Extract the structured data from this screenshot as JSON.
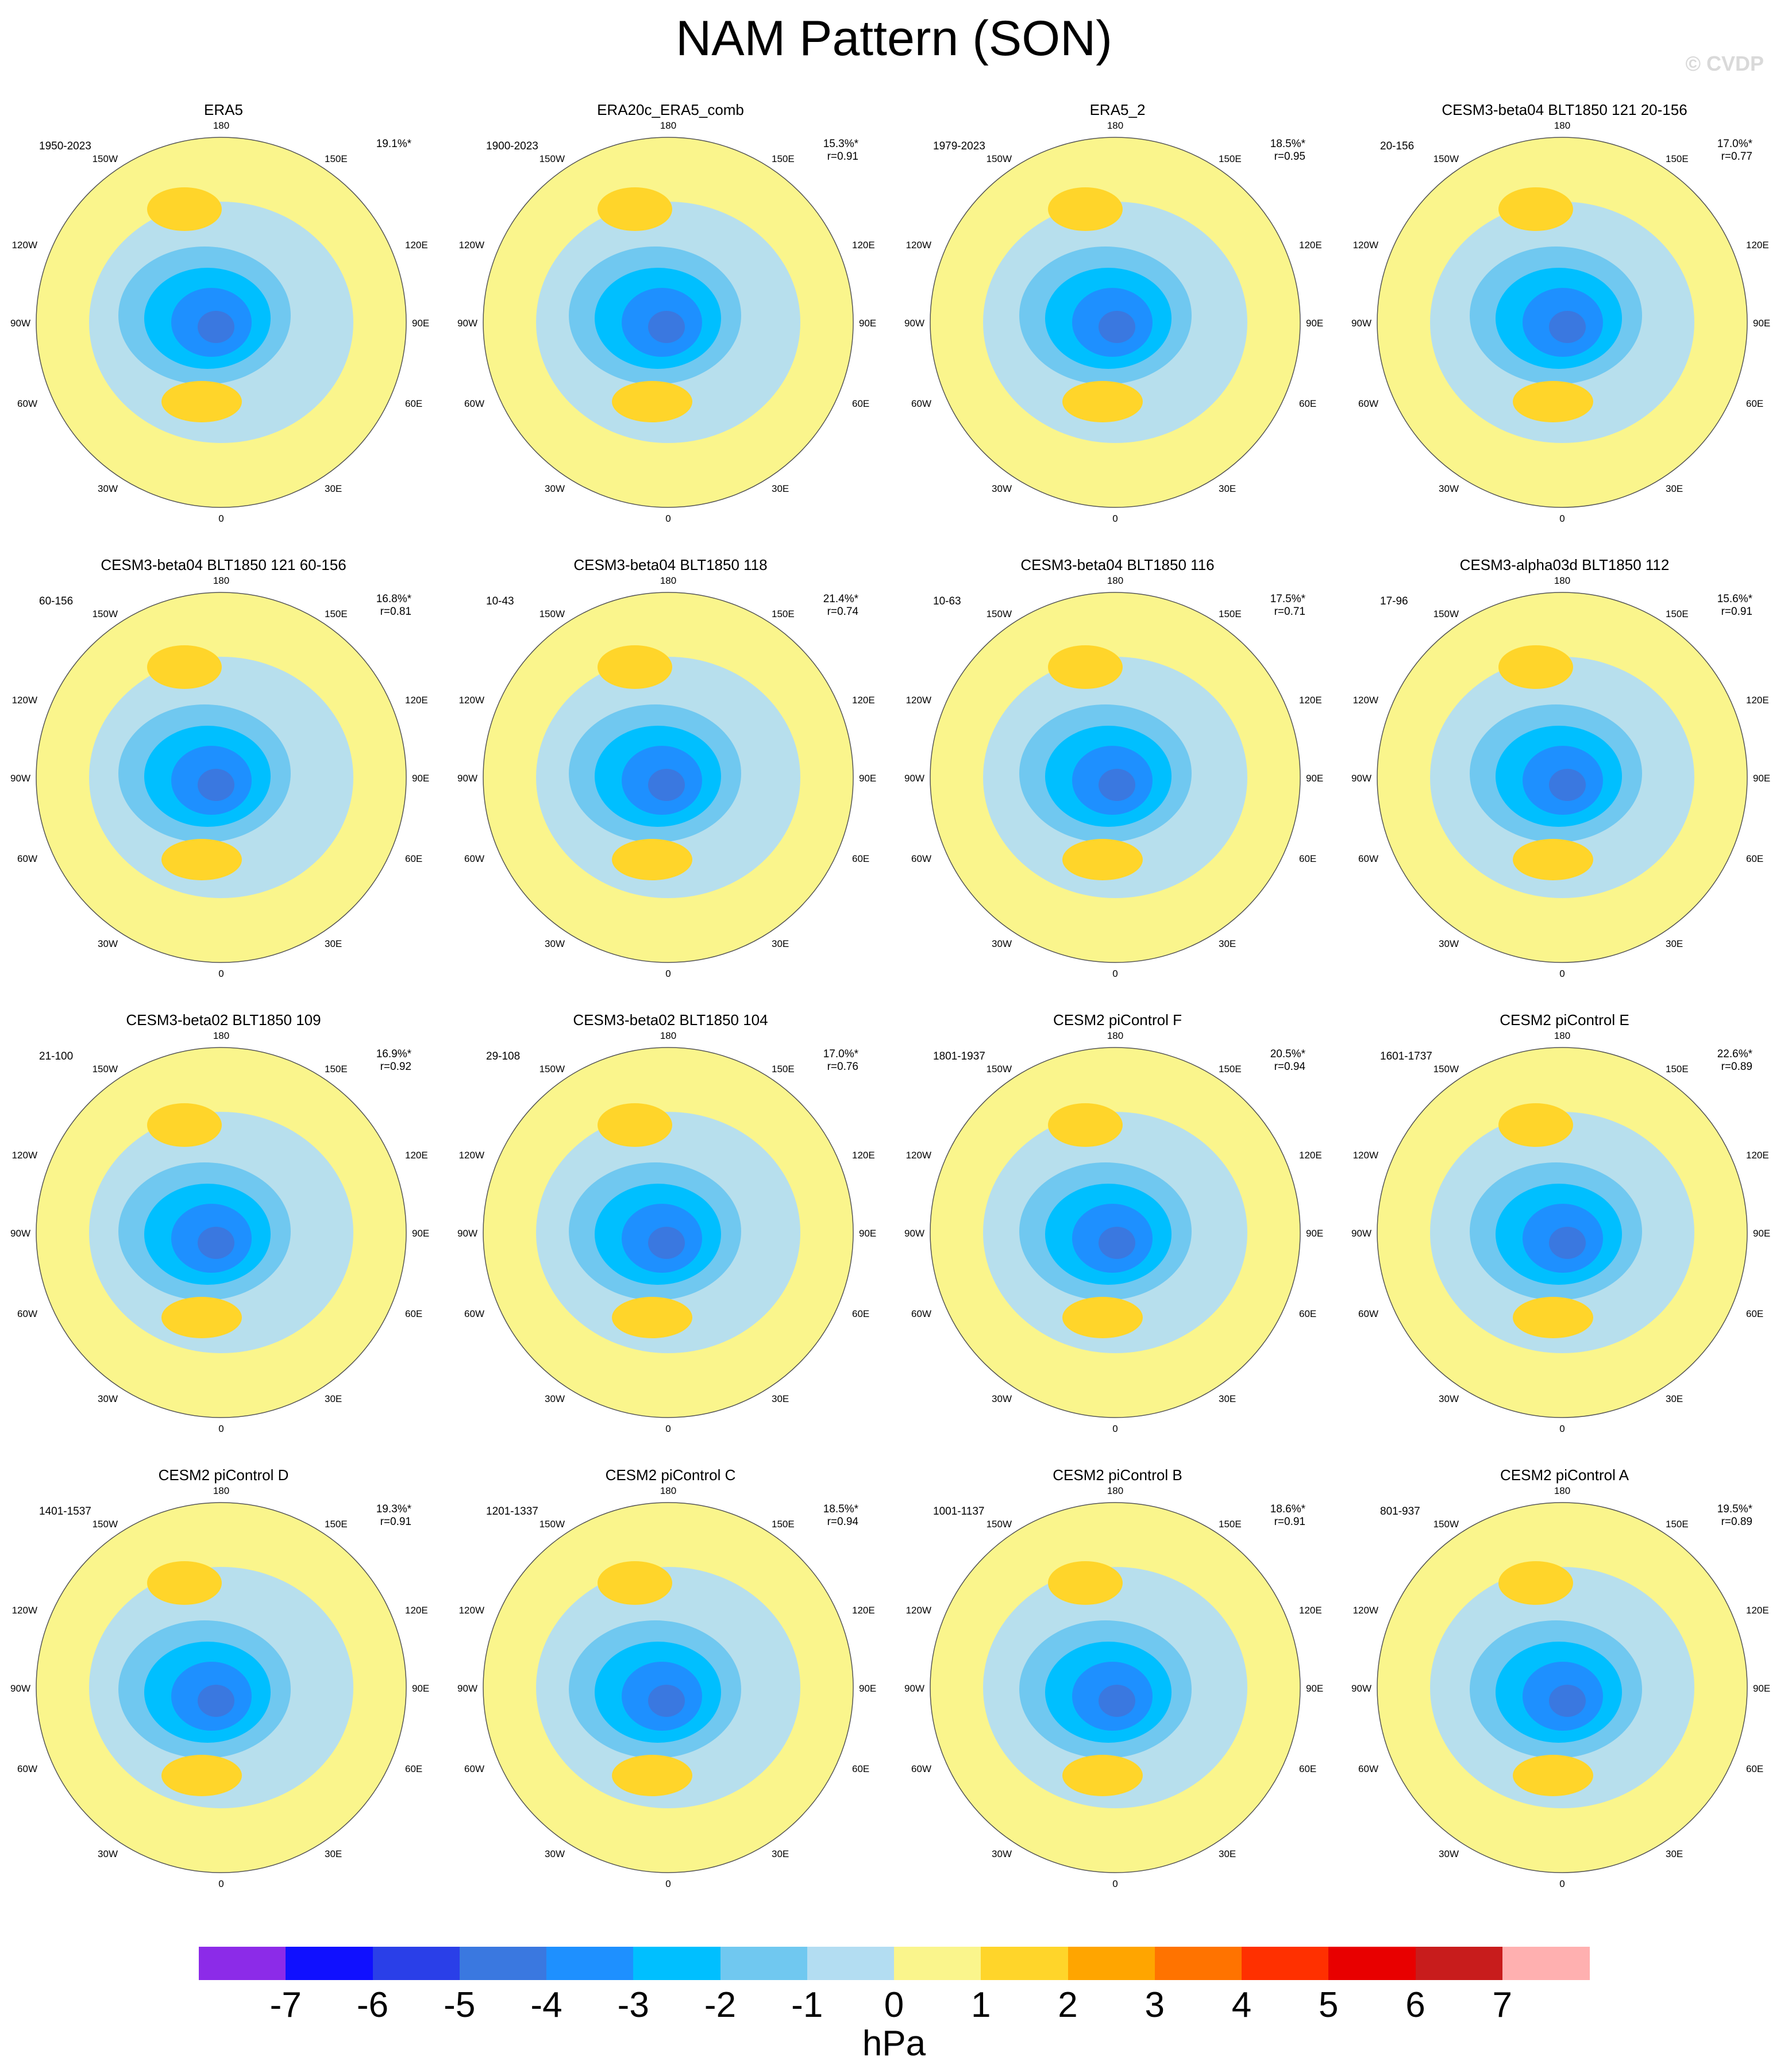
{
  "title": "NAM Pattern (SON)",
  "watermark": "© CVDP",
  "units": "hPa",
  "colorbar": {
    "ticks": [
      "-7",
      "-6",
      "-5",
      "-4",
      "-3",
      "-2",
      "-1",
      "0",
      "1",
      "2",
      "3",
      "4",
      "5",
      "6",
      "7"
    ],
    "colors": [
      "#8C2BE8",
      "#1010FF",
      "#2A3FE8",
      "#3A78E0",
      "#1E90FF",
      "#00BFFF",
      "#70C8F0",
      "#B3DDF2",
      "#FAF58C",
      "#FFD52A",
      "#FFA500",
      "#FF7300",
      "#FF3000",
      "#E80000",
      "#C81C1C",
      "#FFB0B0"
    ]
  },
  "map_labels": {
    "top": "180",
    "bottom": "0",
    "upper_left": "150W",
    "upper_right": "150E",
    "mid_upper_left": "120W",
    "mid_upper_right": "120E",
    "left": "90W",
    "right": "90E",
    "mid_lower_left": "60W",
    "mid_lower_right": "60E",
    "lower_left": "30W",
    "lower_right": "30E"
  },
  "panels": [
    {
      "name": "ERA5",
      "years": "1950-2023",
      "pct": "19.1%*",
      "r": ""
    },
    {
      "name": "ERA20c_ERA5_comb",
      "years": "1900-2023",
      "pct": "15.3%*",
      "r": "r=0.91"
    },
    {
      "name": "ERA5_2",
      "years": "1979-2023",
      "pct": "18.5%*",
      "r": "r=0.95"
    },
    {
      "name": "CESM3-beta04 BLT1850 121 20-156",
      "years": "20-156",
      "pct": "17.0%*",
      "r": "r=0.77"
    },
    {
      "name": "CESM3-beta04 BLT1850 121 60-156",
      "years": "60-156",
      "pct": "16.8%*",
      "r": "r=0.81"
    },
    {
      "name": "CESM3-beta04 BLT1850 118",
      "years": "10-43",
      "pct": "21.4%*",
      "r": "r=0.74"
    },
    {
      "name": "CESM3-beta04 BLT1850 116",
      "years": "10-63",
      "pct": "17.5%*",
      "r": "r=0.71"
    },
    {
      "name": "CESM3-alpha03d BLT1850 112",
      "years": "17-96",
      "pct": "15.6%*",
      "r": "r=0.91"
    },
    {
      "name": "CESM3-beta02 BLT1850 109",
      "years": "21-100",
      "pct": "16.9%*",
      "r": "r=0.92"
    },
    {
      "name": "CESM3-beta02 BLT1850 104",
      "years": "29-108",
      "pct": "17.0%*",
      "r": "r=0.76"
    },
    {
      "name": "CESM2 piControl F",
      "years": "1801-1937",
      "pct": "20.5%*",
      "r": "r=0.94"
    },
    {
      "name": "CESM2 piControl E",
      "years": "1601-1737",
      "pct": "22.6%*",
      "r": "r=0.89"
    },
    {
      "name": "CESM2 piControl D",
      "years": "1401-1537",
      "pct": "19.3%*",
      "r": "r=0.91"
    },
    {
      "name": "CESM2 piControl C",
      "years": "1201-1337",
      "pct": "18.5%*",
      "r": "r=0.94"
    },
    {
      "name": "CESM2 piControl B",
      "years": "1001-1137",
      "pct": "18.6%*",
      "r": "r=0.91"
    },
    {
      "name": "CESM2 piControl A",
      "years": "801-937",
      "pct": "19.5%*",
      "r": "r=0.89"
    }
  ]
}
